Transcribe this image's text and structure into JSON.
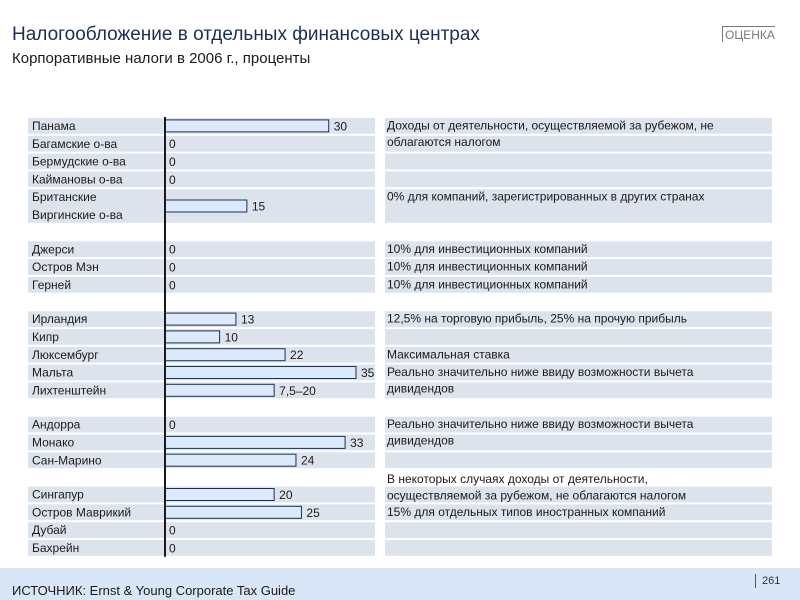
{
  "header": {
    "title": "Налогообложение в отдельных финансовых центрах",
    "subtitle": "Корпоративные налоги в 2006 г., проценты",
    "stamp": "ОЦЕНКА"
  },
  "footer": {
    "source": "ИСТОЧНИК: Ernst & Young Corporate Tax Guide",
    "page_number": "261"
  },
  "colors": {
    "bar_fill": "#dce9fa",
    "bar_stroke": "#1c2f52",
    "row_band": "#dde3ec",
    "axis": "#1a1a1a"
  },
  "chart_data": {
    "type": "bar",
    "orientation": "horizontal",
    "categories": [
      [
        "Панама"
      ],
      [
        "Багамские о-ва"
      ],
      [
        "Бермудские о-ва"
      ],
      [
        "Каймановы о-ва"
      ],
      [
        "Британские",
        "Виргинские о-ва"
      ],
      [
        "Джерси"
      ],
      [
        "Остров Мэн"
      ],
      [
        "Герней"
      ],
      [
        "Ирландия"
      ],
      [
        "Кипр"
      ],
      [
        "Люксембург"
      ],
      [
        "Мальта"
      ],
      [
        "Лихтенштейн"
      ],
      [
        "Андорра"
      ],
      [
        "Монако"
      ],
      [
        "Сан-Марино"
      ],
      [
        "Сингапур"
      ],
      [
        "Остров Маврикий"
      ],
      [
        "Дубай"
      ],
      [
        "Бахрейн"
      ]
    ],
    "values": [
      30,
      0,
      0,
      0,
      15,
      0,
      0,
      0,
      13,
      10,
      22,
      35,
      20,
      0,
      33,
      24,
      20,
      25,
      0,
      0
    ],
    "value_labels": [
      "30",
      "0",
      "0",
      "0",
      "15",
      "0",
      "0",
      "0",
      "13",
      "10",
      "22",
      "35",
      "7,5–20",
      "0",
      "33",
      "24",
      "20",
      "25",
      "0",
      "0"
    ],
    "groups": [
      [
        0,
        4
      ],
      [
        5,
        7
      ],
      [
        8,
        12
      ],
      [
        13,
        15
      ],
      [
        16,
        19
      ]
    ],
    "xlim": [
      0,
      35
    ],
    "notes": [
      {
        "row": 0,
        "lines": [
          "Доходы от деятельности, осуществляемой за рубежом, не",
          "облагаются налогом"
        ]
      },
      {
        "row": 4,
        "lines": [
          "0% для компаний, зарегистрированных в других странах"
        ]
      },
      {
        "row": 5,
        "lines": [
          "10% для инвестиционных компаний"
        ]
      },
      {
        "row": 6,
        "lines": [
          "10% для инвестиционных компаний"
        ]
      },
      {
        "row": 7,
        "lines": [
          "10% для инвестиционных компаний"
        ]
      },
      {
        "row": 8,
        "lines": [
          "12,5% на торговую прибыль, 25% на прочую прибыль"
        ]
      },
      {
        "row": 10,
        "lines": [
          "Максимальная ставка"
        ]
      },
      {
        "row": 11,
        "lines": [
          "Реально значительно ниже ввиду возможности вычета",
          "дивидендов"
        ]
      },
      {
        "row": 13,
        "lines": [
          "Реально значительно ниже ввиду возможности вычета",
          "дивидендов"
        ]
      },
      {
        "row": 16,
        "lines": [
          "В некоторых случаях доходы от деятельности,",
          "осуществляемой за рубежом, не облагаются налогом"
        ],
        "align": "bottom"
      },
      {
        "row": 17,
        "lines": [
          "15% для отдельных типов иностранных компаний"
        ]
      }
    ]
  }
}
